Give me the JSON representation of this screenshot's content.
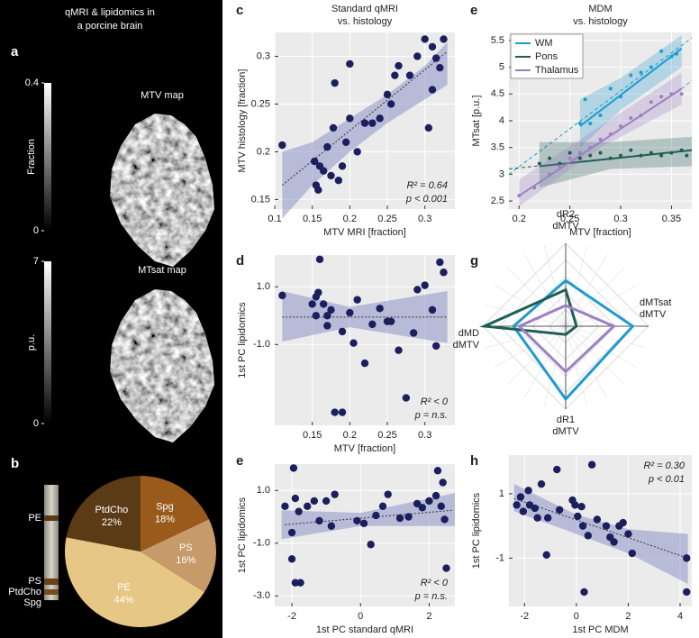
{
  "figure": {
    "title": [
      "qMRI & lipidomics in",
      "a porcine brain"
    ]
  },
  "chart_data": [
    {
      "type": "image",
      "panel": "a",
      "title": "MTV map",
      "ylabel": "Fraction",
      "ylim": [
        0,
        0.4
      ],
      "yticks": [
        0,
        0.4
      ]
    },
    {
      "type": "image",
      "title": "MTsat map",
      "ylabel": "p.u.",
      "ylim": [
        0,
        7
      ],
      "yticks": [
        0,
        7
      ]
    },
    {
      "type": "pie",
      "panel": "b",
      "categories": [
        "Spg",
        "PS",
        "PE",
        "PtdCho"
      ],
      "values": [
        18,
        16,
        44,
        22
      ],
      "value_labels": [
        "18%",
        "16%",
        "44%",
        "22%"
      ],
      "colors": [
        "#9a5a1c",
        "#c79a6a",
        "#e6c785",
        "#5b3b16"
      ],
      "bands": [
        "PE",
        "PS",
        "PtdCho",
        "Spg"
      ]
    },
    {
      "type": "scatter",
      "panel": "c",
      "title": [
        "Standard qMRI",
        "vs. histology"
      ],
      "xlabel": "MTV MRI [fraction]",
      "ylabel": "MTV histology [fraction]",
      "xlim": [
        0.1,
        0.34
      ],
      "xticks": [
        0.1,
        0.15,
        0.2,
        0.25,
        0.3
      ],
      "ylim": [
        0.14,
        0.325
      ],
      "yticks": [
        0.15,
        0.2,
        0.25,
        0.3
      ],
      "grid": true,
      "x": [
        0.11,
        0.153,
        0.155,
        0.158,
        0.16,
        0.165,
        0.17,
        0.175,
        0.178,
        0.18,
        0.185,
        0.19,
        0.195,
        0.2,
        0.2,
        0.21,
        0.22,
        0.23,
        0.24,
        0.25,
        0.255,
        0.26,
        0.265,
        0.28,
        0.29,
        0.3,
        0.305,
        0.31,
        0.315,
        0.32,
        0.325,
        0.31
      ],
      "values": [
        0.207,
        0.19,
        0.165,
        0.16,
        0.185,
        0.18,
        0.205,
        0.175,
        0.225,
        0.272,
        0.17,
        0.185,
        0.21,
        0.235,
        0.292,
        0.2,
        0.23,
        0.23,
        0.235,
        0.26,
        0.25,
        0.28,
        0.29,
        0.28,
        0.3,
        0.318,
        0.225,
        0.31,
        0.298,
        0.288,
        0.318,
        0.265
      ],
      "fit": {
        "x": [
          0.11,
          0.33
        ],
        "y": [
          0.165,
          0.305
        ]
      },
      "band": {
        "x": [
          0.11,
          0.15,
          0.2,
          0.25,
          0.3,
          0.33
        ],
        "upper": [
          0.2,
          0.21,
          0.235,
          0.26,
          0.29,
          0.315
        ],
        "lower": [
          0.13,
          0.165,
          0.2,
          0.23,
          0.255,
          0.27
        ]
      },
      "annotations": [
        "R² = 0.64",
        "p < 0.001"
      ],
      "annotation_position": "lower right"
    },
    {
      "type": "scatter",
      "panel": "d",
      "xlabel": "MTV [fraction]",
      "ylabel": "1st PC lipidomics",
      "xlim": [
        0.1,
        0.34
      ],
      "xticks": [
        0.15,
        0.2,
        0.25,
        0.3
      ],
      "ylim": [
        -3.8,
        2.1
      ],
      "yticks": [
        {
          "value": 1,
          "label": "1.0"
        },
        {
          "value": -1,
          "label": "-1.0"
        }
      ],
      "grid": true,
      "x": [
        0.11,
        0.15,
        0.155,
        0.158,
        0.16,
        0.165,
        0.175,
        0.155,
        0.17,
        0.17,
        0.18,
        0.19,
        0.19,
        0.2,
        0.205,
        0.21,
        0.22,
        0.23,
        0.24,
        0.25,
        0.255,
        0.265,
        0.275,
        0.285,
        0.29,
        0.3,
        0.31,
        0.315,
        0.32,
        0.325
      ],
      "values": [
        0.7,
        0.4,
        0.65,
        0.8,
        1.95,
        0.4,
        0.2,
        0,
        0,
        -0.35,
        -3.35,
        -3.35,
        -0.55,
        0.1,
        -0.95,
        0.55,
        -1.65,
        -0.3,
        0.25,
        -0.2,
        -0.2,
        -1.2,
        -2.85,
        -0.6,
        0.9,
        1.05,
        0.2,
        -1.05,
        1.85,
        1.5
      ],
      "fit": {
        "x": [
          0.11,
          0.33
        ],
        "y": [
          -0.05,
          -0.05
        ]
      },
      "band": {
        "x": [
          0.11,
          0.2,
          0.33
        ],
        "upper": [
          0.85,
          0.3,
          0.85
        ],
        "lower": [
          -0.9,
          -0.4,
          -0.95
        ]
      },
      "annotations": [
        "R² < 0",
        "p = n.s."
      ],
      "annotation_position": "lower right"
    },
    {
      "type": "scatter",
      "panel": "e",
      "xlabel": "1st PC standard qMRI",
      "ylabel": "1st PC lipidomics",
      "xlim": [
        -2.5,
        2.75
      ],
      "xticks": [
        -2,
        0,
        2
      ],
      "ylim": [
        -3.4,
        2.0
      ],
      "yticks": [
        {
          "value": 1,
          "label": "1.0"
        },
        {
          "value": -1,
          "label": "-1.0"
        },
        {
          "value": -3,
          "label": "-3.0"
        }
      ],
      "grid": true,
      "x": [
        -2.2,
        -2,
        -1.95,
        -2,
        -1.9,
        -1.75,
        -1.9,
        -1.8,
        -1.55,
        -1.35,
        -1.2,
        -1,
        -0.85,
        -0.75,
        -0.1,
        0.1,
        0.3,
        0.45,
        0.65,
        0.8,
        1.15,
        1.4,
        1.65,
        1.8,
        2,
        2.2,
        2.25,
        2.35,
        2.4,
        2.45,
        2.5
      ],
      "values": [
        0.4,
        -0.6,
        1.85,
        -1.6,
        -2.5,
        -2.5,
        0.7,
        0.2,
        0.4,
        0.6,
        -0.15,
        0.6,
        -0.35,
        0.85,
        -0.15,
        -0.25,
        -1.05,
        0.05,
        0.4,
        0.85,
        -0.05,
        0,
        0.5,
        0.35,
        0.6,
        0.8,
        1.75,
        0.4,
        1.3,
        -0.1,
        -1.95
      ],
      "fit": {
        "x": [
          -2.2,
          2.7
        ],
        "y": [
          -0.3,
          0.25
        ]
      },
      "band": {
        "x": [
          -2.3,
          0,
          2.75
        ],
        "upper": [
          0.25,
          0.15,
          0.9
        ],
        "lower": [
          -0.85,
          -0.35,
          -0.35
        ]
      },
      "annotations": [
        "R² < 0",
        "p = n.s."
      ],
      "annotation_position": "lower right"
    },
    {
      "type": "line",
      "panel": "e",
      "title": [
        "MDM",
        "vs. histology"
      ],
      "xlabel": "MTV [fraction]",
      "ylabel": "MTsat [p.u.]",
      "xlim": [
        0.19,
        0.37
      ],
      "xticks": [
        0.2,
        0.25,
        0.3,
        0.35
      ],
      "ylim": [
        2.35,
        5.65
      ],
      "yticks": [
        2.5,
        3,
        3.5,
        4,
        4.5,
        5,
        5.5
      ],
      "grid": true,
      "legend": "upper left",
      "series": [
        {
          "name": "WM",
          "color": "#1f9bd0",
          "x": [
            0.26,
            0.265,
            0.27,
            0.28,
            0.29,
            0.3,
            0.31,
            0.32,
            0.33,
            0.34,
            0.35,
            0.355
          ],
          "values": [
            3.95,
            4.4,
            3.95,
            4.1,
            4.6,
            4.45,
            4.85,
            4.9,
            5.0,
            5.3,
            5.2,
            5.25
          ],
          "fit": {
            "x": [
              0.26,
              0.36
            ],
            "y": [
              3.9,
              5.35
            ]
          },
          "extension": {
            "x": [
              0.19,
              0.37
            ],
            "y": [
              3.0,
              5.55
            ]
          },
          "band": {
            "x": [
              0.26,
              0.3,
              0.36
            ],
            "upper": [
              4.4,
              4.8,
              5.6
            ],
            "lower": [
              3.5,
              4.2,
              5.0
            ]
          }
        },
        {
          "name": "Pons",
          "color": "#1f5e55",
          "x": [
            0.22,
            0.23,
            0.24,
            0.25,
            0.26,
            0.27,
            0.28,
            0.29,
            0.3,
            0.31,
            0.32,
            0.33,
            0.34,
            0.35,
            0.36,
            0.365
          ],
          "values": [
            3.2,
            3.3,
            3.2,
            3.4,
            3.3,
            3.35,
            3.4,
            3.3,
            3.35,
            3.45,
            3.35,
            3.4,
            3.35,
            3.4,
            3.45,
            3.35
          ],
          "fit": {
            "x": [
              0.22,
              0.37
            ],
            "y": [
              3.15,
              3.45
            ]
          },
          "extension": {
            "x": [
              0.19,
              0.37
            ],
            "y": [
              3.1,
              3.45
            ]
          },
          "band": {
            "x": [
              0.22,
              0.29,
              0.37
            ],
            "upper": [
              3.6,
              3.6,
              3.7
            ],
            "lower": [
              2.75,
              3.1,
              3.15
            ]
          }
        },
        {
          "name": "Thalamus",
          "color": "#9b80c2",
          "x": [
            0.2,
            0.215,
            0.23,
            0.24,
            0.25,
            0.26,
            0.27,
            0.28,
            0.29,
            0.3,
            0.31,
            0.32,
            0.33,
            0.34,
            0.35,
            0.36
          ],
          "values": [
            2.6,
            2.75,
            3.0,
            3.15,
            3.3,
            3.4,
            3.5,
            3.65,
            3.75,
            3.9,
            4.05,
            4.1,
            4.35,
            4.45,
            4.5,
            4.5
          ],
          "fit": {
            "x": [
              0.2,
              0.36
            ],
            "y": [
              2.6,
              4.6
            ]
          },
          "extension": {
            "x": [
              0.36,
              0.37
            ],
            "y": [
              4.6,
              4.75
            ]
          },
          "band": {
            "x": [
              0.2,
              0.28,
              0.36
            ],
            "upper": [
              2.9,
              3.9,
              4.9
            ],
            "lower": [
              2.4,
              3.5,
              4.3
            ]
          }
        }
      ]
    },
    {
      "type": "radar",
      "panel": "g",
      "axes": [
        [
          "dR2",
          "dMTV"
        ],
        [
          "dMTsat",
          "dMTV"
        ],
        [
          "dR1",
          "dMTV"
        ],
        [
          "dMD",
          "dMTV"
        ]
      ],
      "rlim": [
        0,
        1
      ],
      "series": [
        {
          "name": "WM",
          "color": "#1f9bd0",
          "values": [
            0.55,
            0.81,
            0.88,
            0.63
          ]
        },
        {
          "name": "Pons",
          "color": "#1f5e55",
          "values": [
            0.44,
            0.13,
            0.1,
            0.98
          ]
        },
        {
          "name": "Thalamus",
          "color": "#9b80c2",
          "values": [
            0.25,
            0.58,
            0.55,
            0.56
          ]
        }
      ]
    },
    {
      "type": "scatter",
      "panel": "h",
      "xlabel": "1st PC MDM",
      "ylabel": "1st PC lipidomics",
      "xlim": [
        -2.6,
        4.45
      ],
      "xticks": [
        -2,
        0,
        2,
        4
      ],
      "ylim": [
        -2.5,
        2.2
      ],
      "yticks": [
        1,
        -1
      ],
      "grid": true,
      "x": [
        -2.3,
        -2.15,
        -2.05,
        -1.85,
        -1.8,
        -1.6,
        -1.5,
        -1.35,
        -1.15,
        -1.1,
        -0.75,
        -0.65,
        -0.15,
        -0.05,
        0.05,
        0.2,
        0.25,
        0.3,
        0.45,
        0.6,
        0.8,
        1.15,
        1.3,
        1.45,
        1.65,
        1.8,
        2,
        2.15,
        4.25,
        4.25
      ],
      "values": [
        0.65,
        0.9,
        0.45,
        1.1,
        0.65,
        0.55,
        0.25,
        1.3,
        -0.9,
        0.25,
        1.75,
        0.5,
        0.8,
        0.65,
        0.3,
        0.6,
        0,
        -2.05,
        -0.3,
        1.9,
        0.2,
        0,
        -0.35,
        -0.5,
        0,
        0.1,
        -0.25,
        -0.85,
        -1,
        -2.05
      ],
      "fit": {
        "x": [
          -2.4,
          4.3
        ],
        "y": [
          0.85,
          -1.0
        ]
      },
      "band": {
        "x": [
          -2.4,
          0,
          2,
          4.3
        ],
        "upper": [
          1.3,
          0.35,
          -0.1,
          -0.25
        ],
        "lower": [
          0.45,
          -0.25,
          -0.85,
          -1.8
        ]
      },
      "annotations": [
        "R² = 0.30",
        "p < 0.01"
      ],
      "annotation_position": "upper right"
    }
  ]
}
